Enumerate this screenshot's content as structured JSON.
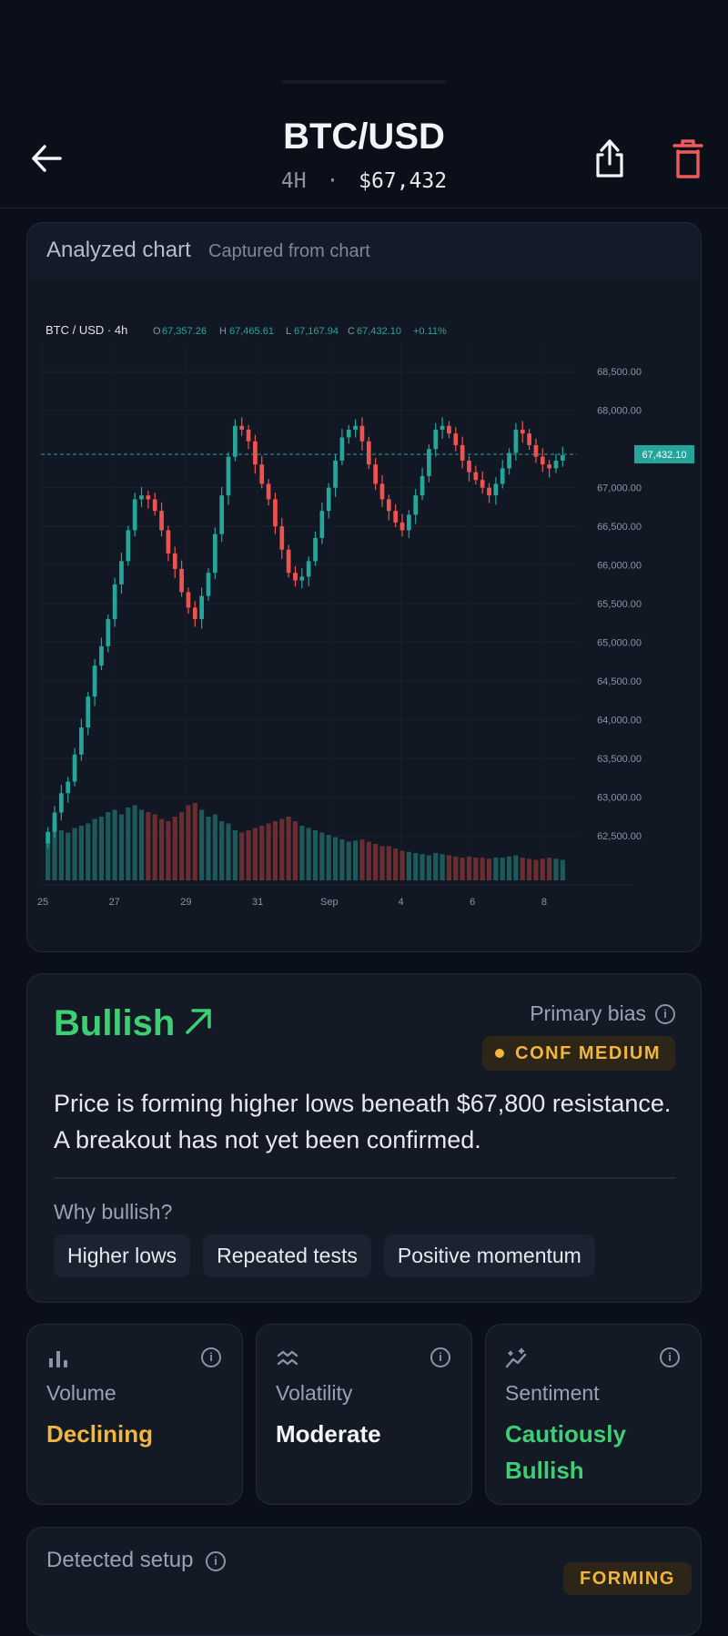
{
  "header": {
    "title": "BTC/USD",
    "timeframe": "4H",
    "separator": "·",
    "price": "$67,432",
    "back_icon": "arrow-left-icon",
    "share_icon": "share-icon",
    "delete_icon": "trash-icon"
  },
  "chart_card": {
    "title": "Analyzed chart",
    "subtitle": "Captured from chart"
  },
  "chart_data": {
    "type": "candlestick",
    "symbol": "BTC / USD · 4h",
    "ohlc_header": {
      "o_label": "O",
      "o": "67,357.26",
      "h_label": "H",
      "h": "67,465.61",
      "l_label": "L",
      "l": "67,167.94",
      "c_label": "C",
      "c": "67,432.10",
      "change": "+0.11%"
    },
    "last_price": 67432.1,
    "last_price_label": "67,432.10",
    "y_ticks": [
      "68,500.00",
      "68,000.00",
      "67,000.00",
      "66,500.00",
      "66,000.00",
      "65,500.00",
      "65,000.00",
      "64,500.00",
      "64,000.00",
      "63,500.00",
      "63,000.00",
      "62,500.00"
    ],
    "y_tick_values": [
      68500,
      68000,
      67000,
      66500,
      66000,
      65500,
      65000,
      64500,
      64000,
      63500,
      63000,
      62500
    ],
    "ylim": [
      62100,
      68750
    ],
    "x_ticks": [
      "25",
      "27",
      "29",
      "31",
      "Sep",
      "4",
      "6",
      "8"
    ],
    "closes": [
      62550,
      62800,
      63050,
      63200,
      63550,
      63900,
      64300,
      64700,
      64950,
      65300,
      65750,
      66050,
      66450,
      66850,
      66900,
      66850,
      66700,
      66450,
      66150,
      65950,
      65650,
      65450,
      65300,
      65600,
      65900,
      66400,
      66900,
      67400,
      67800,
      67750,
      67600,
      67300,
      67050,
      66850,
      66500,
      66200,
      65900,
      65800,
      65850,
      66050,
      66350,
      66700,
      67000,
      67350,
      67650,
      67750,
      67800,
      67600,
      67300,
      67050,
      66850,
      66700,
      66550,
      66450,
      66650,
      66900,
      67150,
      67500,
      67750,
      67800,
      67700,
      67550,
      67350,
      67200,
      67100,
      67000,
      66900,
      67050,
      67250,
      67450,
      67750,
      67700,
      67550,
      67400,
      67300,
      67250,
      67350,
      67420
    ],
    "volumes": [
      38,
      50,
      44,
      42,
      46,
      48,
      50,
      54,
      56,
      60,
      62,
      58,
      64,
      66,
      62,
      60,
      58,
      54,
      52,
      56,
      60,
      66,
      68,
      62,
      56,
      58,
      52,
      50,
      44,
      42,
      44,
      46,
      48,
      50,
      52,
      54,
      56,
      52,
      48,
      46,
      44,
      42,
      40,
      38,
      36,
      34,
      35,
      36,
      34,
      32,
      30,
      30,
      28,
      26,
      25,
      24,
      23,
      22,
      24,
      23,
      22,
      21,
      20,
      21,
      20,
      20,
      19,
      20,
      20,
      21,
      22,
      20,
      19,
      18,
      19,
      20,
      19,
      18
    ]
  },
  "bias": {
    "title": "Bullish",
    "arrow_icon": "arrow-up-right-icon",
    "primary_label": "Primary bias",
    "confidence": "CONF MEDIUM",
    "description": "Price is forming higher lows beneath $67,800 resistance. A breakout has not yet been confirmed.",
    "why_label": "Why bullish?",
    "reasons": [
      "Higher lows",
      "Repeated tests",
      "Positive momentum"
    ]
  },
  "metrics": [
    {
      "label": "Volume",
      "value": "Declining",
      "icon": "bar-chart-icon",
      "color": "#f2b63d"
    },
    {
      "label": "Volatility",
      "value": "Moderate",
      "icon": "wave-icon",
      "color": "#f2f4f8"
    },
    {
      "label": "Sentiment",
      "value": "Cautiously Bullish",
      "icon": "sparkline-icon",
      "color": "#3ecf74"
    }
  ],
  "setup": {
    "title": "Detected setup",
    "status": "FORMING"
  },
  "colors": {
    "bull": "#26a69a",
    "bear": "#ef5350",
    "accent_green": "#3ecf74",
    "amber": "#f2b63d"
  }
}
